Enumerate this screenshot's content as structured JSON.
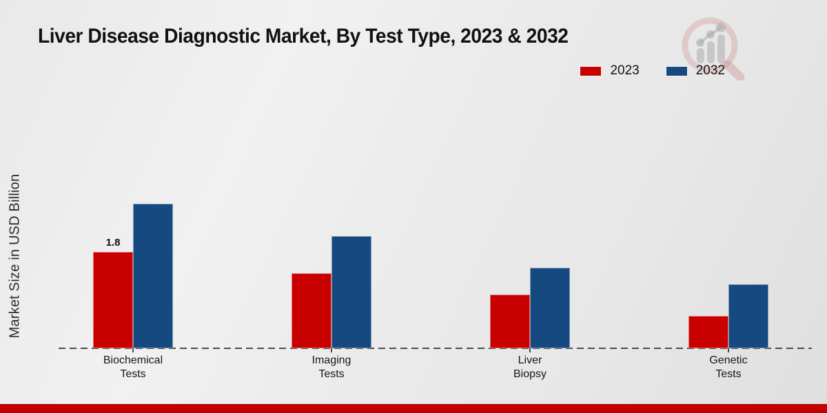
{
  "title": "Liver Disease Diagnostic Market, By Test Type, 2023 & 2032",
  "branding": {
    "watermark_icon": "magnifying-glass-bar-chart-logo"
  },
  "colors": {
    "series_2023": "#c80000",
    "series_2032": "#15497f",
    "footer_stripe": "#c40000",
    "baseline": "#4a4a4a",
    "background": "#eaeaea"
  },
  "chart_data": {
    "type": "bar",
    "title": "Liver Disease Diagnostic Market, By Test Type, 2023 & 2032",
    "categories": [
      "Biochemical Tests",
      "Imaging Tests",
      "Liver Biopsy",
      "Genetic Tests"
    ],
    "series": [
      {
        "name": "2023",
        "color": "#c80000",
        "values": [
          1.8,
          1.4,
          1.0,
          0.6
        ]
      },
      {
        "name": "2032",
        "color": "#15497f",
        "values": [
          2.7,
          2.1,
          1.5,
          1.2
        ]
      }
    ],
    "xlabel": "",
    "ylabel": "Market Size in USD Billion",
    "ylim": [
      0,
      3.2
    ],
    "y_axis_ticks_visible": false,
    "grid": false,
    "baseline_style": "dashed",
    "legend_position": "top-right",
    "shown_data_labels": [
      {
        "series": "2023",
        "category_index": 0,
        "text": "1.8"
      }
    ]
  }
}
